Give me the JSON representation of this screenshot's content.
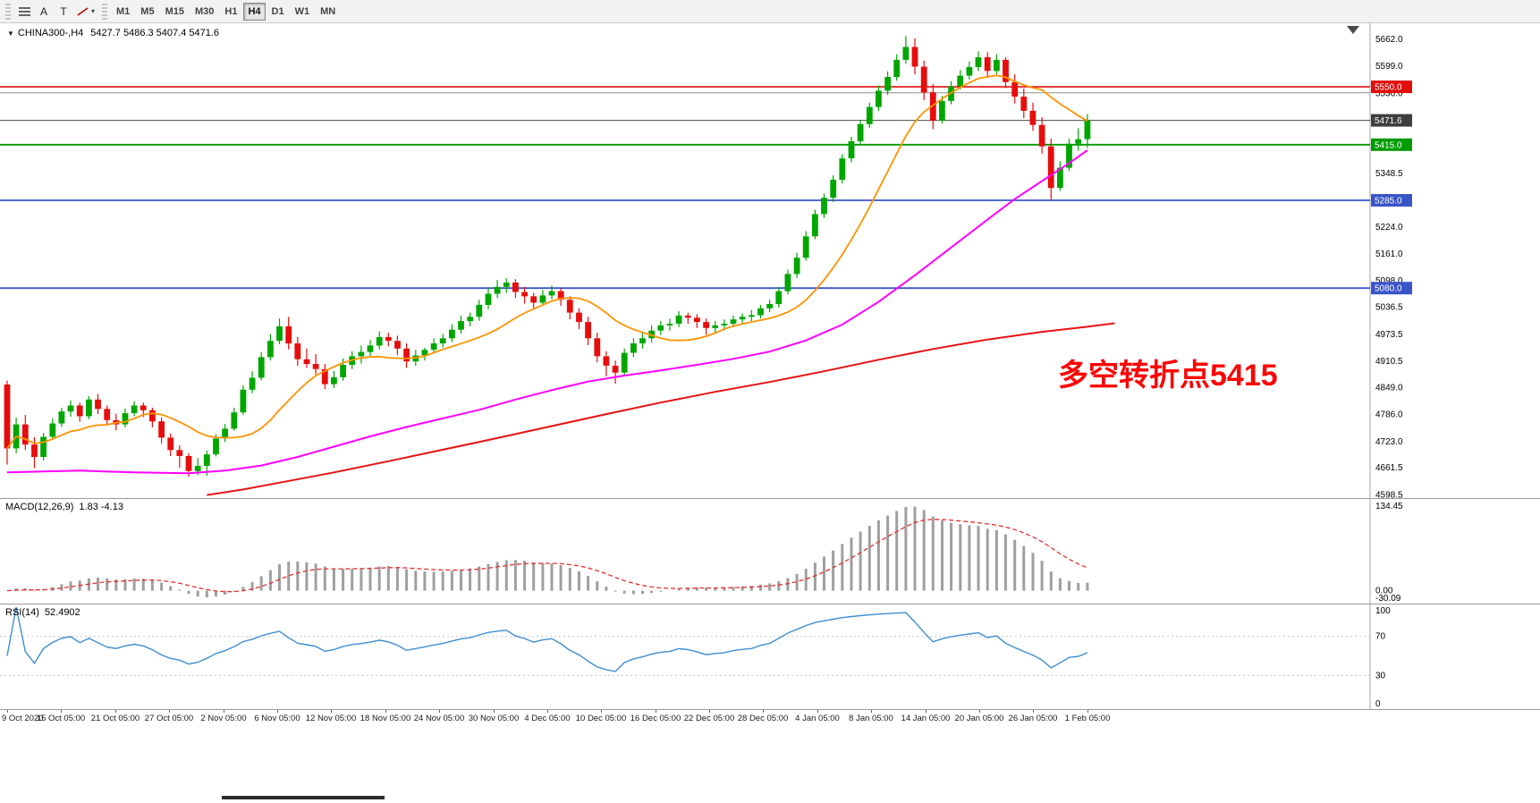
{
  "toolbar": {
    "tools": [
      {
        "id": "line-studies",
        "glyph": ""
      },
      {
        "id": "text-label",
        "glyph": "A"
      },
      {
        "id": "text-frame",
        "glyph": "T"
      },
      {
        "id": "shapes",
        "glyph": "",
        "caret": "▾"
      }
    ],
    "timeframes": [
      {
        "label": "M1",
        "active": false
      },
      {
        "label": "M5",
        "active": false
      },
      {
        "label": "M15",
        "active": false
      },
      {
        "label": "M30",
        "active": false
      },
      {
        "label": "H1",
        "active": false
      },
      {
        "label": "H4",
        "active": true
      },
      {
        "label": "D1",
        "active": false
      },
      {
        "label": "W1",
        "active": false
      },
      {
        "label": "MN",
        "active": false
      }
    ]
  },
  "header": {
    "dropdown_glyph": "▼",
    "title": "CHINA300-,H4",
    "ohlc": "5427.7 5486.3 5407.4 5471.6"
  },
  "annotation": {
    "text": "多空转折点5415",
    "color": "#fb0505"
  },
  "chart_data": {
    "type": "candlestick",
    "symbol": "CHINA300-",
    "timeframe": "H4",
    "last_ohlc": {
      "open": 5427.7,
      "high": 5486.3,
      "low": 5407.4,
      "close": 5471.6
    },
    "up_color": "#00a600",
    "down_color": "#e60d0d",
    "price_axis": {
      "min": 4590,
      "max": 5690,
      "labels": [
        "5662.0",
        "5599.0",
        "5536.0",
        "5473.5",
        "5411.0",
        "5348.5",
        "5286.0",
        "5224.0",
        "5161.0",
        "5098.0",
        "5036.5",
        "4973.5",
        "4910.5",
        "4849.0",
        "4786.0",
        "4723.0",
        "4661.5",
        "4598.5"
      ]
    },
    "time_labels": [
      "9 Oct 2020",
      "15 Oct 05:00",
      "21 Oct 05:00",
      "27 Oct 05:00",
      "2 Nov 05:00",
      "6 Nov 05:00",
      "12 Nov 05:00",
      "18 Nov 05:00",
      "24 Nov 05:00",
      "30 Nov 05:00",
      "4 Dec 05:00",
      "10 Dec 05:00",
      "16 Dec 05:00",
      "22 Dec 05:00",
      "28 Dec 05:00",
      "4 Jan 05:00",
      "8 Jan 05:00",
      "14 Jan 05:00",
      "20 Jan 05:00",
      "26 Jan 05:00",
      "1 Feb 05:00"
    ],
    "candles": [
      [
        4855,
        4864,
        4668,
        4706
      ],
      [
        4706,
        4778,
        4695,
        4762
      ],
      [
        4762,
        4784,
        4702,
        4715
      ],
      [
        4715,
        4732,
        4660,
        4686
      ],
      [
        4686,
        4742,
        4678,
        4733
      ],
      [
        4733,
        4776,
        4726,
        4764
      ],
      [
        4764,
        4801,
        4756,
        4792
      ],
      [
        4792,
        4818,
        4780,
        4806
      ],
      [
        4806,
        4813,
        4768,
        4781
      ],
      [
        4781,
        4828,
        4774,
        4820
      ],
      [
        4820,
        4833,
        4786,
        4798
      ],
      [
        4798,
        4806,
        4760,
        4772
      ],
      [
        4772,
        4787,
        4748,
        4762
      ],
      [
        4762,
        4799,
        4755,
        4788
      ],
      [
        4788,
        4816,
        4781,
        4806
      ],
      [
        4806,
        4813,
        4779,
        4795
      ],
      [
        4795,
        4801,
        4755,
        4769
      ],
      [
        4769,
        4778,
        4717,
        4731
      ],
      [
        4731,
        4741,
        4688,
        4702
      ],
      [
        4702,
        4713,
        4661,
        4688
      ],
      [
        4688,
        4695,
        4640,
        4653
      ],
      [
        4653,
        4683,
        4644,
        4665
      ],
      [
        4665,
        4701,
        4642,
        4692
      ],
      [
        4692,
        4739,
        4687,
        4729
      ],
      [
        4729,
        4763,
        4721,
        4752
      ],
      [
        4752,
        4801,
        4747,
        4790
      ],
      [
        4790,
        4853,
        4784,
        4843
      ],
      [
        4843,
        4886,
        4835,
        4871
      ],
      [
        4871,
        4931,
        4865,
        4919
      ],
      [
        4919,
        4973,
        4911,
        4957
      ],
      [
        4957,
        5009,
        4949,
        4991
      ],
      [
        4991,
        5013,
        4937,
        4951
      ],
      [
        4951,
        4966,
        4899,
        4914
      ],
      [
        4914,
        4939,
        4894,
        4903
      ],
      [
        4903,
        4926,
        4879,
        4891
      ],
      [
        4891,
        4903,
        4844,
        4856
      ],
      [
        4856,
        4887,
        4847,
        4872
      ],
      [
        4872,
        4916,
        4864,
        4901
      ],
      [
        4901,
        4933,
        4891,
        4921
      ],
      [
        4921,
        4946,
        4904,
        4931
      ],
      [
        4931,
        4959,
        4921,
        4946
      ],
      [
        4946,
        4979,
        4937,
        4966
      ],
      [
        4966,
        4976,
        4944,
        4957
      ],
      [
        4957,
        4969,
        4924,
        4939
      ],
      [
        4939,
        4951,
        4894,
        4909
      ],
      [
        4909,
        4936,
        4899,
        4923
      ],
      [
        4923,
        4941,
        4911,
        4936
      ],
      [
        4936,
        4963,
        4927,
        4951
      ],
      [
        4951,
        4973,
        4941,
        4963
      ],
      [
        4963,
        4996,
        4954,
        4983
      ],
      [
        4983,
        5016,
        4974,
        5003
      ],
      [
        5003,
        5023,
        4991,
        5013
      ],
      [
        5013,
        5053,
        5004,
        5041
      ],
      [
        5041,
        5081,
        5031,
        5067
      ],
      [
        5067,
        5099,
        5057,
        5083
      ],
      [
        5083,
        5103,
        5069,
        5093
      ],
      [
        5093,
        5101,
        5057,
        5071
      ],
      [
        5071,
        5083,
        5044,
        5061
      ],
      [
        5061,
        5069,
        5031,
        5046
      ],
      [
        5046,
        5076,
        5039,
        5063
      ],
      [
        5063,
        5086,
        5054,
        5073
      ],
      [
        5073,
        5081,
        5039,
        5053
      ],
      [
        5053,
        5061,
        5007,
        5023
      ],
      [
        5023,
        5033,
        4984,
        5001
      ],
      [
        5001,
        5013,
        4947,
        4963
      ],
      [
        4963,
        4976,
        4907,
        4921
      ],
      [
        4921,
        4933,
        4874,
        4899
      ],
      [
        4899,
        4911,
        4857,
        4883
      ],
      [
        4883,
        4939,
        4875,
        4929
      ],
      [
        4929,
        4963,
        4919,
        4951
      ],
      [
        4951,
        4976,
        4939,
        4963
      ],
      [
        4963,
        4993,
        4954,
        4981
      ],
      [
        4981,
        5003,
        4971,
        4993
      ],
      [
        4993,
        5009,
        4981,
        4997
      ],
      [
        4997,
        5026,
        4989,
        5016
      ],
      [
        5016,
        5023,
        4997,
        5011
      ],
      [
        5011,
        5019,
        4987,
        5001
      ],
      [
        5001,
        5009,
        4971,
        4987
      ],
      [
        4987,
        5003,
        4977,
        4993
      ],
      [
        4993,
        5007,
        4981,
        4997
      ],
      [
        4997,
        5016,
        4989,
        5007
      ],
      [
        5007,
        5021,
        4997,
        5013
      ],
      [
        5013,
        5029,
        5003,
        5017
      ],
      [
        5017,
        5041,
        5009,
        5033
      ],
      [
        5033,
        5053,
        5024,
        5043
      ],
      [
        5043,
        5083,
        5035,
        5073
      ],
      [
        5073,
        5123,
        5065,
        5113
      ],
      [
        5113,
        5163,
        5104,
        5151
      ],
      [
        5151,
        5213,
        5144,
        5201
      ],
      [
        5201,
        5263,
        5194,
        5253
      ],
      [
        5253,
        5301,
        5244,
        5291
      ],
      [
        5291,
        5343,
        5281,
        5333
      ],
      [
        5333,
        5393,
        5324,
        5383
      ],
      [
        5383,
        5433,
        5374,
        5423
      ],
      [
        5423,
        5473,
        5414,
        5463
      ],
      [
        5463,
        5513,
        5454,
        5503
      ],
      [
        5503,
        5553,
        5494,
        5541
      ],
      [
        5541,
        5586,
        5531,
        5573
      ],
      [
        5573,
        5626,
        5564,
        5613
      ],
      [
        5613,
        5669,
        5604,
        5643
      ],
      [
        5643,
        5663,
        5579,
        5597
      ],
      [
        5597,
        5611,
        5519,
        5537
      ],
      [
        5537,
        5556,
        5451,
        5471
      ],
      [
        5471,
        5529,
        5464,
        5517
      ],
      [
        5517,
        5563,
        5509,
        5551
      ],
      [
        5551,
        5589,
        5544,
        5576
      ],
      [
        5576,
        5609,
        5567,
        5596
      ],
      [
        5596,
        5633,
        5587,
        5619
      ],
      [
        5619,
        5631,
        5571,
        5587
      ],
      [
        5587,
        5626,
        5579,
        5613
      ],
      [
        5613,
        5619,
        5547,
        5561
      ],
      [
        5561,
        5579,
        5511,
        5527
      ],
      [
        5527,
        5546,
        5477,
        5494
      ],
      [
        5494,
        5513,
        5447,
        5461
      ],
      [
        5461,
        5479,
        5394,
        5411
      ],
      [
        5411,
        5429,
        5286,
        5314
      ],
      [
        5314,
        5376,
        5307,
        5361
      ],
      [
        5361,
        5429,
        5354,
        5417
      ],
      [
        5417,
        5453,
        5401,
        5427.7
      ],
      [
        5427.7,
        5486.3,
        5407.4,
        5471.6
      ]
    ],
    "overlays": [
      {
        "kind": "sma",
        "name": "ma-fast-orange",
        "period": 12,
        "color": "#ff9300",
        "width": 1.8
      },
      {
        "kind": "polyline",
        "name": "ma-mid-magenta",
        "color": "#ff00ff",
        "width": 2,
        "points": [
          [
            0,
            4650
          ],
          [
            8,
            4654
          ],
          [
            14,
            4650
          ],
          [
            20,
            4648
          ],
          [
            24,
            4654
          ],
          [
            28,
            4666
          ],
          [
            32,
            4686
          ],
          [
            36,
            4710
          ],
          [
            40,
            4734
          ],
          [
            44,
            4756
          ],
          [
            48,
            4776
          ],
          [
            52,
            4796
          ],
          [
            56,
            4820
          ],
          [
            60,
            4842
          ],
          [
            64,
            4862
          ],
          [
            68,
            4876
          ],
          [
            72,
            4888
          ],
          [
            76,
            4901
          ],
          [
            80,
            4915
          ],
          [
            84,
            4932
          ],
          [
            88,
            4958
          ],
          [
            92,
            4995
          ],
          [
            96,
            5048
          ],
          [
            100,
            5110
          ],
          [
            104,
            5175
          ],
          [
            108,
            5240
          ],
          [
            111,
            5288
          ],
          [
            114,
            5330
          ],
          [
            117,
            5372
          ],
          [
            119,
            5402
          ]
        ]
      },
      {
        "kind": "polyline",
        "name": "ma-slow-red",
        "color": "#e51212",
        "width": 2,
        "points": [
          [
            22,
            4597
          ],
          [
            26,
            4610
          ],
          [
            30,
            4626
          ],
          [
            36,
            4650
          ],
          [
            42,
            4676
          ],
          [
            48,
            4703
          ],
          [
            54,
            4730
          ],
          [
            60,
            4758
          ],
          [
            66,
            4786
          ],
          [
            72,
            4813
          ],
          [
            78,
            4838
          ],
          [
            84,
            4861
          ],
          [
            90,
            4886
          ],
          [
            96,
            4913
          ],
          [
            102,
            4938
          ],
          [
            108,
            4960
          ],
          [
            114,
            4978
          ],
          [
            119,
            4990
          ],
          [
            122,
            4998
          ]
        ]
      }
    ],
    "hlines": [
      {
        "price": 5550.0,
        "color": "#e10d0d",
        "width": 1.6,
        "badge": "5550.0",
        "badge_color": "#e10d0d"
      },
      {
        "price": 5536.0,
        "color": "#8f8f8f",
        "width": 1,
        "badge": null,
        "badge_color": null
      },
      {
        "price": 5471.6,
        "color": "#4a4a4a",
        "width": 1,
        "badge": "5471.6",
        "badge_color": "#3f3f3f"
      },
      {
        "price": 5415.0,
        "color": "#009b00",
        "width": 1.8,
        "badge": "5415.0",
        "badge_color": "#009b00"
      },
      {
        "price": 5285.0,
        "color": "#3a55c8",
        "width": 1.8,
        "badge": "5285.0",
        "badge_color": "#3a55c8"
      },
      {
        "price": 5080.0,
        "color": "#3a55c8",
        "width": 1.8,
        "badge": "5080.0",
        "badge_color": "#3a55c8"
      }
    ],
    "macd": {
      "label": "MACD(12,26,9)",
      "values_text": "1.83 -4.13",
      "fast": 12,
      "slow": 26,
      "signal": 9,
      "axis_labels": [
        "134.45",
        "0.00",
        "-30.09"
      ],
      "hist_color": "#9f9f9f",
      "signal_color": "#e03030"
    },
    "rsi": {
      "label": "RSI(14)",
      "value_text": "52.4902",
      "period": 14,
      "levels": [
        70,
        30
      ],
      "axis_labels": [
        "100",
        "70",
        "30",
        "0"
      ],
      "color": "#3e8ed0",
      "ymin": 0,
      "ymax": 100
    }
  }
}
